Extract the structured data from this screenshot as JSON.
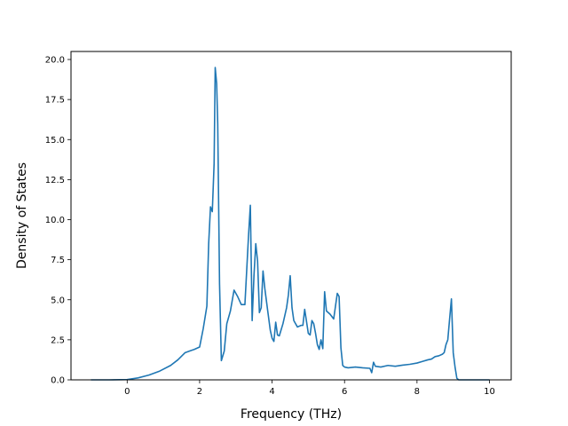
{
  "chart_data": {
    "type": "line",
    "title": "",
    "xlabel": "Frequency (THz)",
    "ylabel": "Density of States",
    "xlim": [
      -1.55,
      10.6
    ],
    "ylim": [
      0.0,
      20.5
    ],
    "xticks": [
      0,
      2,
      4,
      6,
      8,
      10
    ],
    "xtick_labels": [
      "0",
      "2",
      "4",
      "6",
      "8",
      "10"
    ],
    "yticks": [
      0.0,
      2.5,
      5.0,
      7.5,
      10.0,
      12.5,
      15.0,
      17.5,
      20.0
    ],
    "ytick_labels": [
      "0.0",
      "2.5",
      "5.0",
      "7.5",
      "10.0",
      "12.5",
      "15.0",
      "17.5",
      "20.0"
    ],
    "grid": false,
    "series_color": "#1f77b4",
    "series": [
      {
        "x": [
          -1.0,
          -0.5,
          0.0,
          0.3,
          0.6,
          0.9,
          1.2,
          1.4,
          1.6,
          1.75,
          1.85,
          2.0,
          2.1,
          2.2,
          2.25,
          2.3,
          2.35,
          2.4,
          2.43,
          2.47,
          2.5,
          2.55,
          2.6,
          2.68,
          2.75,
          2.85,
          2.95,
          3.05,
          3.15,
          3.25,
          3.35,
          3.4,
          3.45,
          3.5,
          3.55,
          3.6,
          3.65,
          3.7,
          3.75,
          3.8,
          3.88,
          3.95,
          4.0,
          4.05,
          4.1,
          4.15,
          4.2,
          4.3,
          4.4,
          4.45,
          4.5,
          4.55,
          4.6,
          4.7,
          4.8,
          4.85,
          4.9,
          5.0,
          5.05,
          5.1,
          5.15,
          5.2,
          5.25,
          5.3,
          5.35,
          5.4,
          5.45,
          5.5,
          5.6,
          5.7,
          5.75,
          5.8,
          5.85,
          5.9,
          5.95,
          6.0,
          6.1,
          6.3,
          6.5,
          6.7,
          6.75,
          6.8,
          6.85,
          7.0,
          7.2,
          7.4,
          7.6,
          7.8,
          8.0,
          8.15,
          8.3,
          8.4,
          8.5,
          8.6,
          8.7,
          8.75,
          8.8,
          8.85,
          8.9,
          8.95,
          9.0,
          9.05,
          9.1,
          9.15,
          9.5,
          10.0
        ],
        "y": [
          0.0,
          0.0,
          0.02,
          0.12,
          0.3,
          0.55,
          0.9,
          1.25,
          1.7,
          1.82,
          1.9,
          2.05,
          3.2,
          4.6,
          8.5,
          10.8,
          10.5,
          13.5,
          19.5,
          18.5,
          16.0,
          6.0,
          1.2,
          1.8,
          3.5,
          4.3,
          5.6,
          5.2,
          4.7,
          4.7,
          9.0,
          10.9,
          3.7,
          6.5,
          8.5,
          7.4,
          4.2,
          4.5,
          6.8,
          5.7,
          4.3,
          3.1,
          2.6,
          2.4,
          3.6,
          2.8,
          2.75,
          3.5,
          4.5,
          5.3,
          6.5,
          4.5,
          3.7,
          3.3,
          3.4,
          3.4,
          4.4,
          2.9,
          2.8,
          3.7,
          3.5,
          2.9,
          2.2,
          1.9,
          2.5,
          1.95,
          5.5,
          4.3,
          4.1,
          3.8,
          4.6,
          5.4,
          5.2,
          2.0,
          0.9,
          0.8,
          0.75,
          0.8,
          0.75,
          0.72,
          0.45,
          1.1,
          0.85,
          0.8,
          0.9,
          0.85,
          0.92,
          0.97,
          1.05,
          1.15,
          1.25,
          1.3,
          1.45,
          1.5,
          1.6,
          1.7,
          2.2,
          2.5,
          3.8,
          5.05,
          1.7,
          0.8,
          0.1,
          0.0,
          0.0,
          0.0
        ]
      }
    ]
  }
}
